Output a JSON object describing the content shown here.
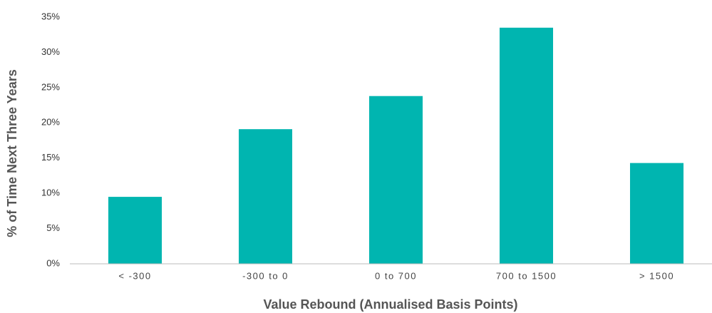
{
  "chart_data": {
    "type": "bar",
    "x_label": "Value Rebound (Annualised Basis Points)",
    "y_label": "% of Time Next Three Years",
    "categories": [
      "< -300",
      "-300 to 0",
      "0 to 700",
      "700 to 1500",
      "> 1500"
    ],
    "values": [
      9.5,
      19.1,
      23.8,
      33.5,
      14.3
    ],
    "color": "#00b5b0",
    "ylim": [
      0,
      35
    ],
    "yticks": [
      {
        "value": 0,
        "label": "0%"
      },
      {
        "value": 5,
        "label": "5%"
      },
      {
        "value": 10,
        "label": "10%"
      },
      {
        "value": 15,
        "label": "15%"
      },
      {
        "value": 20,
        "label": "20%"
      },
      {
        "value": 25,
        "label": "25%"
      },
      {
        "value": 30,
        "label": "30%"
      },
      {
        "value": 35,
        "label": "35%"
      }
    ],
    "grid": false
  }
}
